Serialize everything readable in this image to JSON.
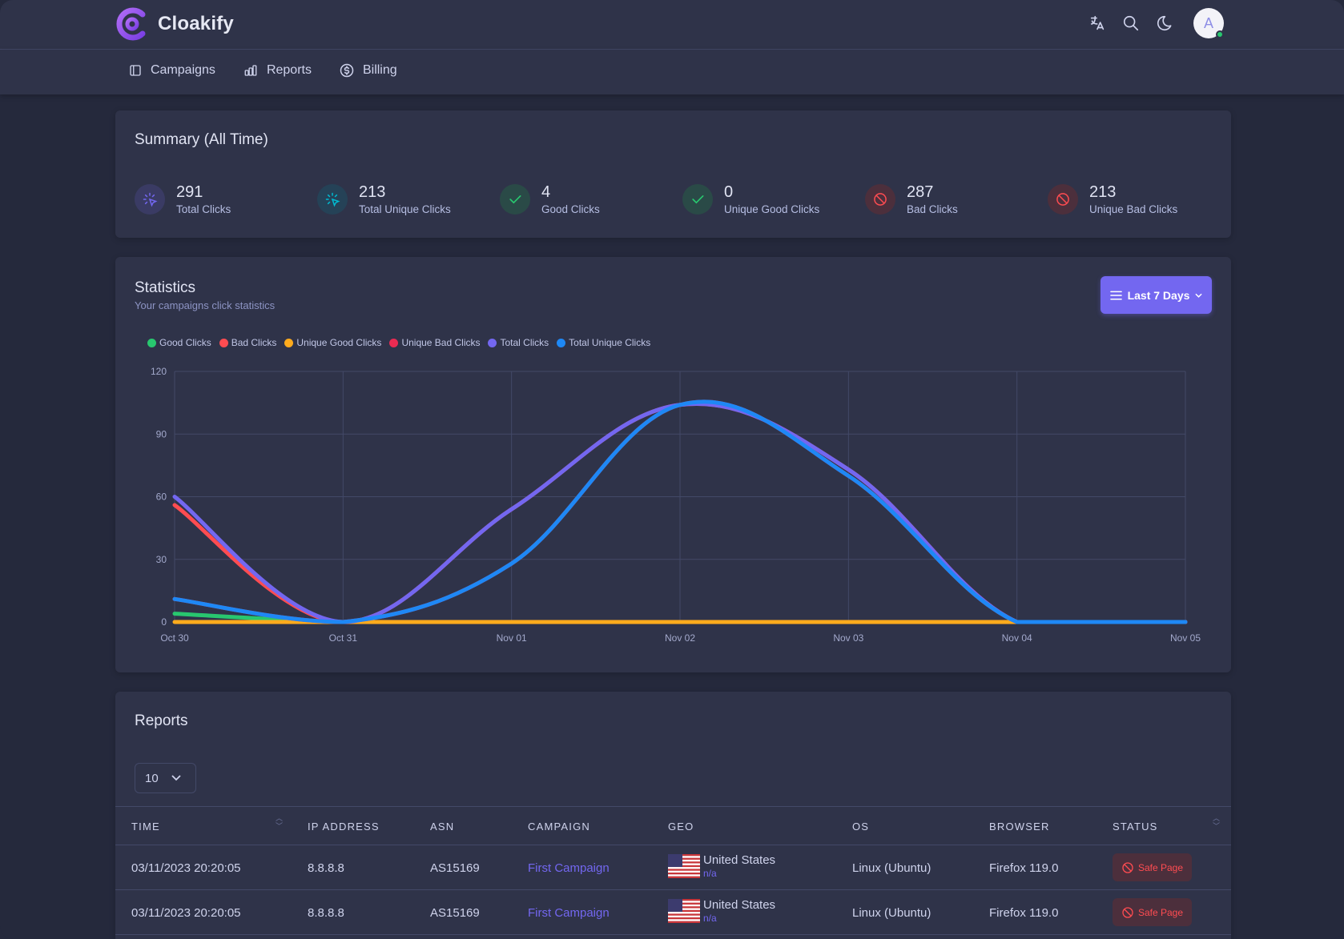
{
  "app": {
    "name": "Cloakify",
    "avatar_letter": "A"
  },
  "icons": {
    "translate": "translate-icon",
    "search": "search-icon",
    "theme": "moon-icon"
  },
  "nav": {
    "items": [
      {
        "label": "Campaigns",
        "icon": "layout-icon"
      },
      {
        "label": "Reports",
        "icon": "chart-bar-icon"
      },
      {
        "label": "Billing",
        "icon": "currency-dollar-icon"
      }
    ]
  },
  "summary": {
    "title": "Summary (All Time)",
    "stats": [
      {
        "value": "291",
        "label": "Total Clicks",
        "icon": "click-icon",
        "color": "#7367f0"
      },
      {
        "value": "213",
        "label": "Total Unique Clicks",
        "icon": "click-icon",
        "color": "#00bad1"
      },
      {
        "value": "4",
        "label": "Good Clicks",
        "icon": "check-icon",
        "color": "#28c76f"
      },
      {
        "value": "0",
        "label": "Unique Good Clicks",
        "icon": "check-icon",
        "color": "#28c76f"
      },
      {
        "value": "287",
        "label": "Bad Clicks",
        "icon": "ban-icon",
        "color": "#ff4c51"
      },
      {
        "value": "213",
        "label": "Unique Bad Clicks",
        "icon": "ban-icon",
        "color": "#ff4c51"
      }
    ]
  },
  "statistics": {
    "title": "Statistics",
    "subtitle": "Your campaigns click statistics",
    "range_label": "Last 7 Days"
  },
  "chart_data": {
    "type": "line",
    "x": [
      "Oct 30",
      "Oct 31",
      "Nov 01",
      "Nov 02",
      "Nov 03",
      "Nov 04",
      "Nov 05"
    ],
    "ylim": [
      0,
      120
    ],
    "yticks": [
      0,
      30,
      60,
      90,
      120
    ],
    "grid": true,
    "legend": "top-left",
    "series": [
      {
        "name": "Good Clicks",
        "color": "#28c76f",
        "values": [
          4,
          0,
          0,
          0,
          0,
          0,
          0
        ]
      },
      {
        "name": "Bad Clicks",
        "color": "#ff4c51",
        "values": [
          56,
          0,
          54,
          104,
          73,
          0,
          0
        ]
      },
      {
        "name": "Unique Good Clicks",
        "color": "#ffab1d",
        "values": [
          0,
          0,
          0,
          0,
          0,
          0,
          0
        ]
      },
      {
        "name": "Unique Bad Clicks",
        "color": "#ea2b52",
        "values": [
          11,
          0,
          28,
          104,
          70,
          0,
          0
        ]
      },
      {
        "name": "Total Clicks",
        "color": "#7367f0",
        "values": [
          60,
          0,
          54,
          104,
          73,
          0,
          0
        ]
      },
      {
        "name": "Total Unique Clicks",
        "color": "#1e88f5",
        "values": [
          11,
          0,
          28,
          104,
          70,
          0,
          0
        ]
      }
    ]
  },
  "reports": {
    "title": "Reports",
    "page_size": "10",
    "columns": [
      "TIME",
      "IP ADDRESS",
      "ASN",
      "CAMPAIGN",
      "GEO",
      "OS",
      "BROWSER",
      "STATUS"
    ],
    "rows": [
      {
        "time": "03/11/2023 20:20:05",
        "ip": "8.8.8.8",
        "asn": "AS15169",
        "campaign": "First Campaign",
        "geo_country": "United States",
        "geo_sub": "n/a",
        "os": "Linux (Ubuntu)",
        "browser": "Firefox 119.0",
        "status": "Safe Page"
      },
      {
        "time": "03/11/2023 20:20:05",
        "ip": "8.8.8.8",
        "asn": "AS15169",
        "campaign": "First Campaign",
        "geo_country": "United States",
        "geo_sub": "n/a",
        "os": "Linux (Ubuntu)",
        "browser": "Firefox 119.0",
        "status": "Safe Page"
      }
    ]
  }
}
